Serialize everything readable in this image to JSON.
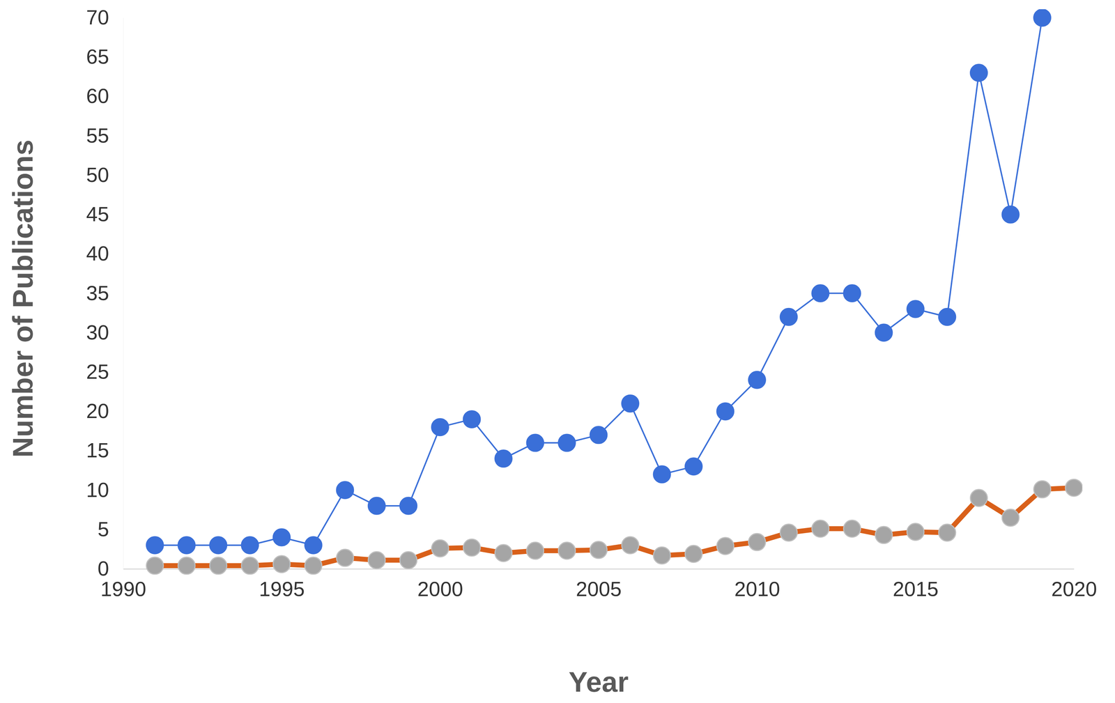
{
  "chart_data": {
    "type": "line",
    "x_label": "Year",
    "y_label": "Number of Publications",
    "x": [
      1991,
      1992,
      1993,
      1994,
      1995,
      1996,
      1997,
      1998,
      1999,
      2000,
      2001,
      2002,
      2003,
      2004,
      2005,
      2006,
      2007,
      2008,
      2009,
      2010,
      2011,
      2012,
      2013,
      2014,
      2015,
      2016,
      2017,
      2018,
      2019,
      2020
    ],
    "series": [
      {
        "color": "#3a6fd8",
        "marker": "circle",
        "line_style": "solid",
        "values": [
          3,
          3,
          3,
          3,
          4,
          3,
          10,
          8,
          8,
          18,
          19,
          14,
          16,
          16,
          17,
          21,
          12,
          13,
          20,
          24,
          32,
          35,
          35,
          30,
          33,
          32,
          63,
          45,
          70,
          null
        ]
      },
      {
        "color": "#d9601a",
        "marker": "circle",
        "line_style": "solid",
        "values": [
          0.4,
          0.4,
          0.4,
          0.4,
          0.6,
          0.4,
          1.4,
          1.1,
          1.1,
          2.6,
          2.7,
          2.0,
          2.3,
          2.3,
          2.4,
          3.0,
          1.7,
          1.9,
          2.9,
          3.4,
          4.6,
          5.1,
          5.1,
          4.3,
          4.7,
          4.6,
          9.0,
          6.5,
          10.1,
          10.3
        ]
      }
    ],
    "xlim": [
      1990,
      2020
    ],
    "xticks": [
      1990,
      1995,
      2000,
      2005,
      2010,
      2015,
      2020
    ],
    "ylim": [
      0,
      70
    ],
    "yticks": [
      0,
      5,
      10,
      15,
      20,
      25,
      30,
      35,
      40,
      45,
      50,
      55,
      60,
      65,
      70
    ],
    "grid": false
  }
}
